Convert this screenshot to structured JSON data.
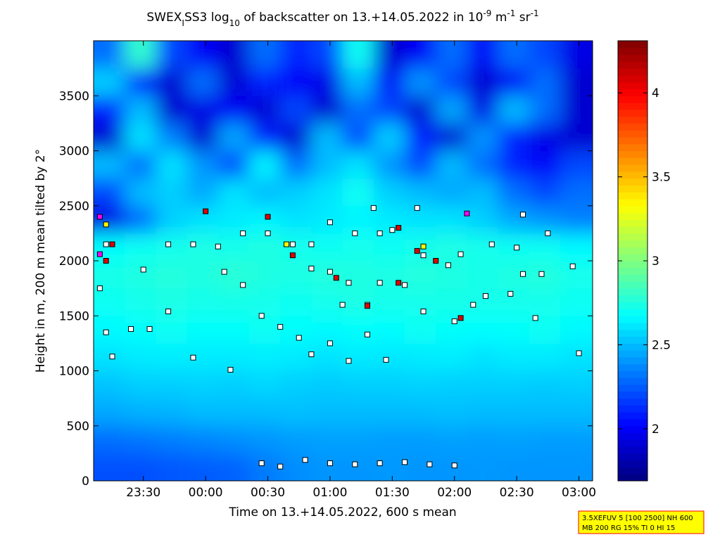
{
  "chart_data": {
    "type": "heatmap",
    "title_parts": [
      {
        "text": "SWEX",
        "shift": "none"
      },
      {
        "text": "I",
        "shift": "sub"
      },
      {
        "text": "SS3 log",
        "shift": "none"
      },
      {
        "text": "10",
        "shift": "sub"
      },
      {
        "text": " of backscatter on 13.+14.05.2022 in 10",
        "shift": "none"
      },
      {
        "text": "-9",
        "shift": "super"
      },
      {
        "text": " m",
        "shift": "none"
      },
      {
        "text": "-1",
        "shift": "super"
      },
      {
        "text": " sr",
        "shift": "none"
      },
      {
        "text": "-1",
        "shift": "super"
      }
    ],
    "x_label": "Time on 13.+14.05.2022, 600 s mean",
    "y_label": "Height in m, 200 m mean tilted by 2°",
    "xlim": [
      23.1,
      27.11
    ],
    "xticks": [
      {
        "value": 23.5,
        "label": "23:30"
      },
      {
        "value": 24,
        "label": "00:00"
      },
      {
        "value": 24.5,
        "label": "00:30"
      },
      {
        "value": 25,
        "label": "01:00"
      },
      {
        "value": 25.5,
        "label": "01:30"
      },
      {
        "value": 26,
        "label": "02:00"
      },
      {
        "value": 26.5,
        "label": "02:30"
      },
      {
        "value": 27,
        "label": "03:00"
      }
    ],
    "ylim": [
      0,
      4000
    ],
    "yticks": [
      0,
      500,
      1000,
      1500,
      2000,
      2500,
      3000,
      3500
    ],
    "colormap": "jet",
    "clim": [
      1.69,
      4.31
    ],
    "colorbar_ticks": [
      2,
      2.5,
      3,
      3.5,
      4
    ],
    "x_edges": [
      23.1,
      23.35,
      23.6,
      23.85,
      24.1,
      24.35,
      24.6,
      24.85,
      25.1,
      25.35,
      25.6,
      25.85,
      26.1,
      26.35,
      26.6,
      26.85,
      27.11
    ],
    "y_edges": [
      0,
      250,
      500,
      750,
      1000,
      1250,
      1500,
      1750,
      2000,
      2250,
      2500,
      2750,
      3000,
      3250,
      3500,
      3750,
      4000
    ],
    "z": [
      [
        2.22,
        2.22,
        2.24,
        2.25,
        2.27,
        2.33,
        2.38,
        2.4,
        2.4,
        2.41,
        2.4,
        2.4,
        2.41,
        2.4,
        2.4,
        2.4
      ],
      [
        2.3,
        2.32,
        2.34,
        2.36,
        2.38,
        2.4,
        2.42,
        2.43,
        2.43,
        2.42,
        2.42,
        2.43,
        2.42,
        2.43,
        2.42,
        2.42
      ],
      [
        2.45,
        2.47,
        2.48,
        2.5,
        2.5,
        2.5,
        2.51,
        2.5,
        2.5,
        2.5,
        2.5,
        2.51,
        2.5,
        2.5,
        2.5,
        2.5
      ],
      [
        2.52,
        2.55,
        2.55,
        2.56,
        2.55,
        2.57,
        2.55,
        2.54,
        2.55,
        2.55,
        2.56,
        2.55,
        2.55,
        2.55,
        2.54,
        2.55
      ],
      [
        2.6,
        2.62,
        2.63,
        2.62,
        2.62,
        2.63,
        2.62,
        2.6,
        2.62,
        2.61,
        2.62,
        2.63,
        2.6,
        2.62,
        2.62,
        2.6
      ],
      [
        2.66,
        2.68,
        2.7,
        2.68,
        2.68,
        2.7,
        2.68,
        2.66,
        2.68,
        2.67,
        2.7,
        2.68,
        2.67,
        2.68,
        2.7,
        2.66
      ],
      [
        2.7,
        2.72,
        2.74,
        2.72,
        2.73,
        2.72,
        2.7,
        2.72,
        2.74,
        2.72,
        2.72,
        2.73,
        2.72,
        2.72,
        2.72,
        2.7
      ],
      [
        2.73,
        2.75,
        2.76,
        2.75,
        2.78,
        2.75,
        2.74,
        2.76,
        2.75,
        2.74,
        2.76,
        2.75,
        2.73,
        2.75,
        2.76,
        2.72
      ],
      [
        2.68,
        2.7,
        2.72,
        2.74,
        2.72,
        2.75,
        2.72,
        2.7,
        2.72,
        2.7,
        2.72,
        2.74,
        2.72,
        2.7,
        2.7,
        2.66
      ],
      [
        1.95,
        2.3,
        2.55,
        2.6,
        2.62,
        2.65,
        2.6,
        2.62,
        2.65,
        2.62,
        2.6,
        2.6,
        2.55,
        2.45,
        2.4,
        2.35
      ],
      [
        2.2,
        2.5,
        2.55,
        2.45,
        2.6,
        2.5,
        2.55,
        2.6,
        2.7,
        2.55,
        2.5,
        2.45,
        2.5,
        2.3,
        2.2,
        2.3
      ],
      [
        2.5,
        2.3,
        2.6,
        2.4,
        2.2,
        2.65,
        2.3,
        2.5,
        2.6,
        2.4,
        2.2,
        2.5,
        2.3,
        2.1,
        2.0,
        2.2
      ],
      [
        1.9,
        2.6,
        2.35,
        1.9,
        2.45,
        2.1,
        1.9,
        2.5,
        2.2,
        2.55,
        2.1,
        1.9,
        2.4,
        2.1,
        1.95,
        1.9
      ],
      [
        2.1,
        2.5,
        1.9,
        1.95,
        2.0,
        1.9,
        2.2,
        1.9,
        2.3,
        2.2,
        1.9,
        2.45,
        1.95,
        2.5,
        2.3,
        1.9
      ],
      [
        2.55,
        2.1,
        1.9,
        2.3,
        1.9,
        2.1,
        2.0,
        1.95,
        2.5,
        2.0,
        2.4,
        2.2,
        1.9,
        2.0,
        2.3,
        1.9
      ],
      [
        2.3,
        2.8,
        2.2,
        2.0,
        1.9,
        2.3,
        2.1,
        2.2,
        2.7,
        1.9,
        2.0,
        2.3,
        2.0,
        2.3,
        2.2,
        1.95
      ]
    ],
    "markers": [
      {
        "color": "#ffffff",
        "x": [
          24.45,
          24.6,
          24.8,
          25.0,
          25.2,
          25.4,
          25.6,
          25.8,
          26.0,
          23.7,
          23.9,
          24.1,
          24.3,
          24.5,
          24.7,
          24.85,
          24.15,
          24.3,
          24.45,
          24.6,
          24.75,
          23.4,
          23.55,
          23.7,
          24.85,
          25.0,
          25.15,
          25.1,
          25.3,
          25.4,
          25.6,
          25.0,
          25.2,
          25.4,
          25.35,
          25.5,
          25.7,
          25.75,
          25.95,
          26.05,
          26.3,
          26.5,
          25.75,
          26.0,
          26.15,
          26.25,
          26.45,
          26.55,
          26.7,
          26.65,
          26.55,
          26.75,
          26.95,
          27.0,
          25.45,
          25.3,
          24.85,
          25.0,
          23.15,
          23.2,
          23.25,
          23.9,
          24.2,
          25.15,
          23.5,
          23.2
        ],
        "y": [
          160,
          130,
          190,
          160,
          150,
          160,
          170,
          150,
          140,
          2150,
          2150,
          2130,
          2250,
          2250,
          2150,
          2150,
          1900,
          1780,
          1500,
          1400,
          1300,
          1380,
          1380,
          1540,
          1930,
          1900,
          1800,
          1600,
          1600,
          1800,
          1780,
          2350,
          2250,
          2250,
          2480,
          2280,
          2480,
          2050,
          1960,
          2060,
          2150,
          2120,
          1540,
          1450,
          1600,
          1680,
          1700,
          1880,
          1880,
          1480,
          2420,
          2250,
          1950,
          1160,
          1100,
          1330,
          1150,
          1250,
          1750,
          1350,
          1130,
          1120,
          1010,
          1090,
          1920,
          2150
        ]
      },
      {
        "color": "#e00000",
        "x": [
          23.2,
          23.25,
          24.0,
          24.5,
          24.7,
          25.05,
          25.3,
          25.55,
          25.7,
          25.85,
          25.55,
          26.05
        ],
        "y": [
          2000,
          2150,
          2450,
          2400,
          2050,
          1845,
          1590,
          2300,
          2090,
          2000,
          1800,
          1480
        ]
      },
      {
        "color": "#ffff00",
        "x": [
          23.2,
          25.75,
          24.65
        ],
        "y": [
          2330,
          2130,
          2150
        ]
      },
      {
        "color": "#ff00ff",
        "x": [
          23.15,
          23.15,
          26.1
        ],
        "y": [
          2400,
          2060,
          2430
        ]
      }
    ],
    "annotation_lines": [
      "3.5XEFUV 5 [100 2500] NH 600",
      "MB 200 RG 15% TI 0 HI 15"
    ]
  }
}
